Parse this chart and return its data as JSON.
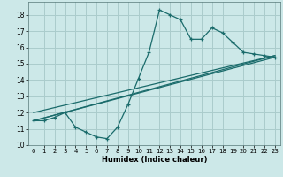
{
  "xlabel": "Humidex (Indice chaleur)",
  "bg_color": "#cce8e8",
  "grid_color": "#aacccc",
  "line_color": "#1a6b6b",
  "xlim": [
    -0.5,
    23.5
  ],
  "ylim": [
    10,
    18.8
  ],
  "yticks": [
    10,
    11,
    12,
    13,
    14,
    15,
    16,
    17,
    18
  ],
  "xticks": [
    0,
    1,
    2,
    3,
    4,
    5,
    6,
    7,
    8,
    9,
    10,
    11,
    12,
    13,
    14,
    15,
    16,
    17,
    18,
    19,
    20,
    21,
    22,
    23
  ],
  "line1_x": [
    0,
    1,
    2,
    3,
    4,
    5,
    6,
    7,
    8,
    9,
    10,
    11,
    12,
    13,
    14,
    15,
    16,
    17,
    18,
    19,
    20,
    21,
    22,
    23
  ],
  "line1_y": [
    11.5,
    11.5,
    11.7,
    12.0,
    11.1,
    10.8,
    10.5,
    10.4,
    11.1,
    12.5,
    14.1,
    15.7,
    18.3,
    18.0,
    17.7,
    16.5,
    16.5,
    17.2,
    16.9,
    16.3,
    15.7,
    15.6,
    15.5,
    15.4
  ],
  "line2_x": [
    0,
    23
  ],
  "line2_y": [
    11.5,
    15.5
  ],
  "line3_x": [
    0,
    23
  ],
  "line3_y": [
    12.0,
    15.5
  ],
  "line4_x": [
    0,
    23
  ],
  "line4_y": [
    11.5,
    15.4
  ]
}
